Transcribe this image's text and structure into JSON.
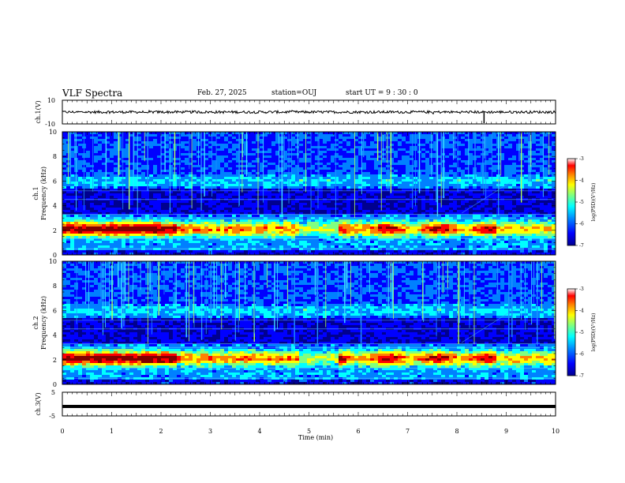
{
  "header": {
    "title": "VLF Spectra",
    "date": "Feb. 27, 2025",
    "station": "station=OUJ",
    "start": "start UT =  9 : 30 : 0"
  },
  "chart_data": [
    {
      "type": "line",
      "name": "ch1-waveform",
      "ylabel": "ch.1(V)",
      "ylim": [
        -10,
        10
      ],
      "yticks": [
        "10",
        "-10"
      ],
      "xlim": [
        0,
        10
      ],
      "baseline": 0,
      "spike_x": 8.55
    },
    {
      "type": "heatmap",
      "name": "ch1-spectrogram",
      "ylabel": "ch.1\nFrequency (kHz)",
      "ylim": [
        0,
        10
      ],
      "yticks": [
        "0",
        "2",
        "4",
        "6",
        "8",
        "10"
      ],
      "xlim": [
        0,
        10
      ],
      "colorbar": {
        "ticks": [
          "-3",
          "-4",
          "-5",
          "-6",
          "-7"
        ],
        "label": "log(PSD)(V²/Hz)",
        "range": [
          -7,
          -3
        ]
      }
    },
    {
      "type": "heatmap",
      "name": "ch2-spectrogram",
      "ylabel": "ch.2\nFrequency (kHz)",
      "ylim": [
        0,
        10
      ],
      "yticks": [
        "0",
        "2",
        "4",
        "6",
        "8",
        "10"
      ],
      "xlim": [
        0,
        10
      ],
      "colorbar": {
        "ticks": [
          "-3",
          "-4",
          "-5",
          "-6",
          "-7"
        ],
        "label": "log(PSD)(V²/Hz)",
        "range": [
          -7,
          -3
        ]
      }
    },
    {
      "type": "line",
      "name": "ch3-waveform",
      "ylabel": "ch.3(V)",
      "ylim": [
        -5,
        5
      ],
      "yticks": [
        "5",
        "-5"
      ],
      "xlim": [
        0,
        10
      ],
      "baseline": -1
    }
  ],
  "xaxis": {
    "label": "Time (min)",
    "ticks": [
      "0",
      "1",
      "2",
      "3",
      "4",
      "5",
      "6",
      "7",
      "8",
      "9",
      "10"
    ]
  },
  "colors": {
    "colormap": [
      "#00008f",
      "#0000ff",
      "#0080ff",
      "#00ffff",
      "#80ff80",
      "#ffff00",
      "#ff8000",
      "#ff0000",
      "#800000"
    ]
  }
}
